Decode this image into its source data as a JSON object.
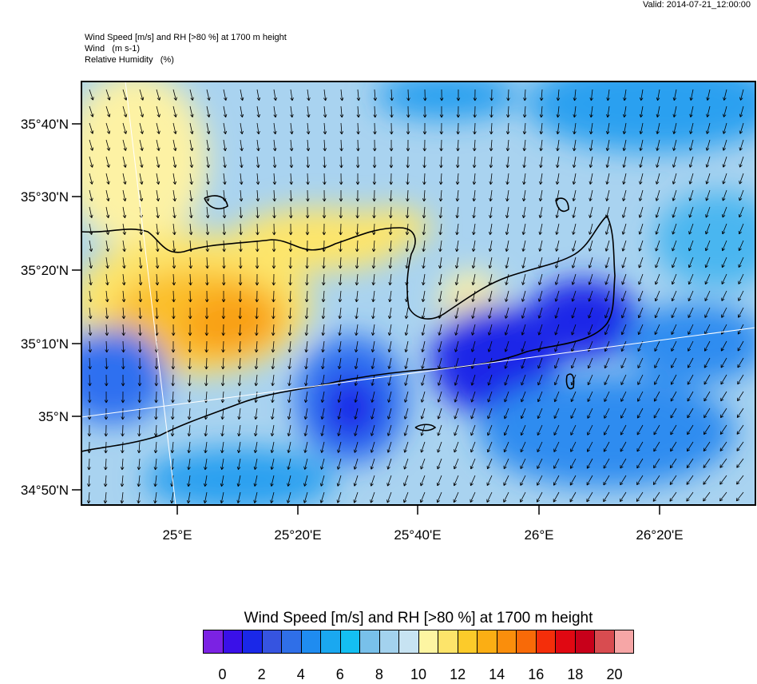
{
  "valid": "Valid: 2014-07-21_12:00:00",
  "header": {
    "line1": "Wind Speed [m/s] and RH [>80 %] at 1700 m height",
    "line2": "Wind   (m s-1)",
    "line3": "Relative Humidity   (%)"
  },
  "map": {
    "lat_labels": [
      "35°40'N",
      "35°30'N",
      "35°20'N",
      "35°10'N",
      "35°N",
      "34°50'N"
    ],
    "lon_labels": [
      "25°E",
      "25°20'E",
      "25°40'E",
      "26°E",
      "26°20'E"
    ]
  },
  "colorbar": {
    "title": "Wind Speed [m/s] and RH [>80 %] at 1700 m height",
    "colors": [
      "#7b22e3",
      "#3a10e8",
      "#1a28e8",
      "#3654e0",
      "#2f6fe8",
      "#1f8cf0",
      "#1aa8f0",
      "#14bff2",
      "#78c0ea",
      "#a3d2ee",
      "#c7e3f2",
      "#fdf5a2",
      "#fde46a",
      "#fccb2a",
      "#fbae14",
      "#fa8e0c",
      "#f86a08",
      "#f42e0a",
      "#e00812",
      "#c8001a",
      "#d84c50",
      "#f6a6a6"
    ],
    "tick_labels": [
      "0",
      "2",
      "4",
      "6",
      "8",
      "10",
      "12",
      "14",
      "16",
      "18",
      "20"
    ]
  }
}
